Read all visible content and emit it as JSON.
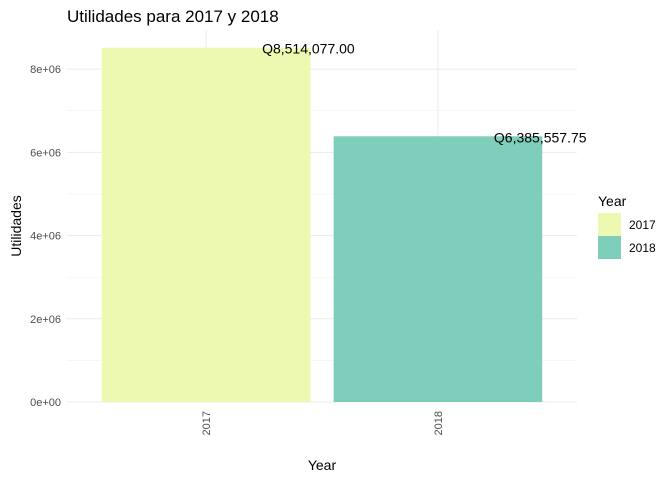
{
  "chart_data": {
    "type": "bar",
    "title": "Utilidades para 2017 y 2018",
    "xlabel": "Year",
    "ylabel": "Utilidades",
    "categories": [
      "2017",
      "2018"
    ],
    "values": [
      8514077.0,
      6385557.75
    ],
    "data_labels": [
      "Q8,514,077.00",
      "Q6,385,557.75"
    ],
    "colors": [
      "#EDF8B1",
      "#7FCDBB"
    ],
    "ylim": [
      0,
      8940000
    ],
    "yticks": [
      0,
      2000000,
      4000000,
      6000000,
      8000000
    ],
    "ytick_labels": [
      "0e+00",
      "2e+06",
      "4e+06",
      "6e+06",
      "8e+06"
    ],
    "grid": true,
    "legend": {
      "title": "Year",
      "placement": "right",
      "entries": [
        "2017",
        "2018"
      ]
    }
  }
}
